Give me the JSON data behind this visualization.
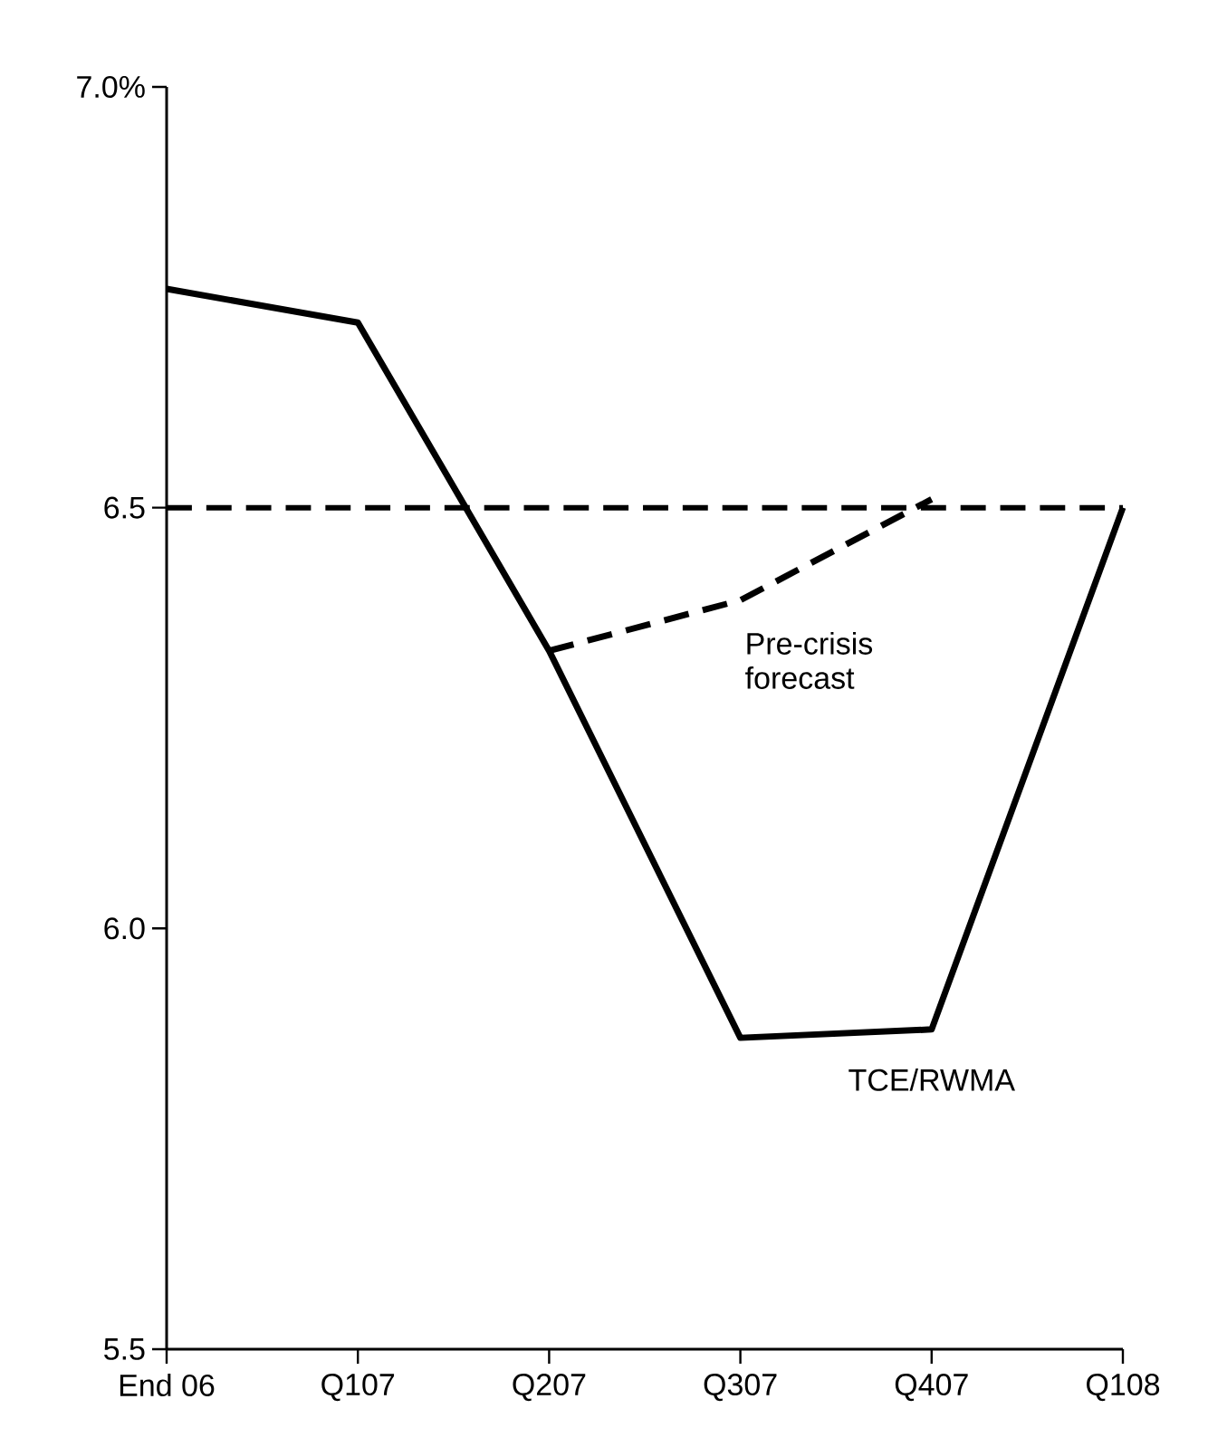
{
  "chart_data": {
    "type": "line",
    "categories": [
      "End 06",
      "Q107",
      "Q207",
      "Q307",
      "Q407",
      "Q108"
    ],
    "series": [
      {
        "name": "TCE/RWMA",
        "color": "#000000",
        "values": [
          6.76,
          6.72,
          6.33,
          5.87,
          5.88,
          6.5
        ],
        "line_style": "solid"
      },
      {
        "name": "Pre-crisis forecast",
        "color": "#000000",
        "values": [
          null,
          null,
          6.33,
          6.39,
          6.51,
          null
        ],
        "line_style": "dashed"
      }
    ],
    "ylim": [
      5.5,
      7.0
    ],
    "yticks": [
      {
        "value": 5.5,
        "label": "5.5"
      },
      {
        "value": 6.0,
        "label": "6.0"
      },
      {
        "value": 6.5,
        "label": "6.5"
      },
      {
        "value": 7.0,
        "label": "7.0%"
      }
    ],
    "ref_lines": [
      {
        "axis": "y",
        "value": 6.5,
        "label": null,
        "color": "#000000",
        "line_style": "dashed"
      }
    ],
    "grid": false,
    "legend": false,
    "marker": "none"
  }
}
